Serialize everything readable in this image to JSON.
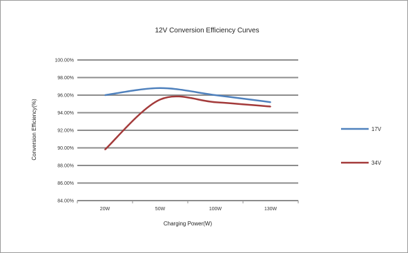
{
  "chart_data": {
    "type": "line",
    "title": "12V Conversion Efficiency Curves",
    "xlabel": "Charging Power(W)",
    "ylabel": "Conversion Efficiency(%)",
    "categories": [
      "20W",
      "50W",
      "100W",
      "130W"
    ],
    "ylim": [
      84,
      100
    ],
    "yticks": [
      "84.00%",
      "86.00%",
      "88.00%",
      "90.00%",
      "92.00%",
      "94.00%",
      "96.00%",
      "98.00%",
      "100.00%"
    ],
    "grid": true,
    "legend_position": "right",
    "series": [
      {
        "name": "17V",
        "color": "#4f81bd",
        "values": [
          96.0,
          96.8,
          96.0,
          95.2
        ]
      },
      {
        "name": "34V",
        "color": "#a33a3a",
        "values": [
          89.8,
          95.5,
          95.2,
          94.7
        ]
      }
    ]
  }
}
